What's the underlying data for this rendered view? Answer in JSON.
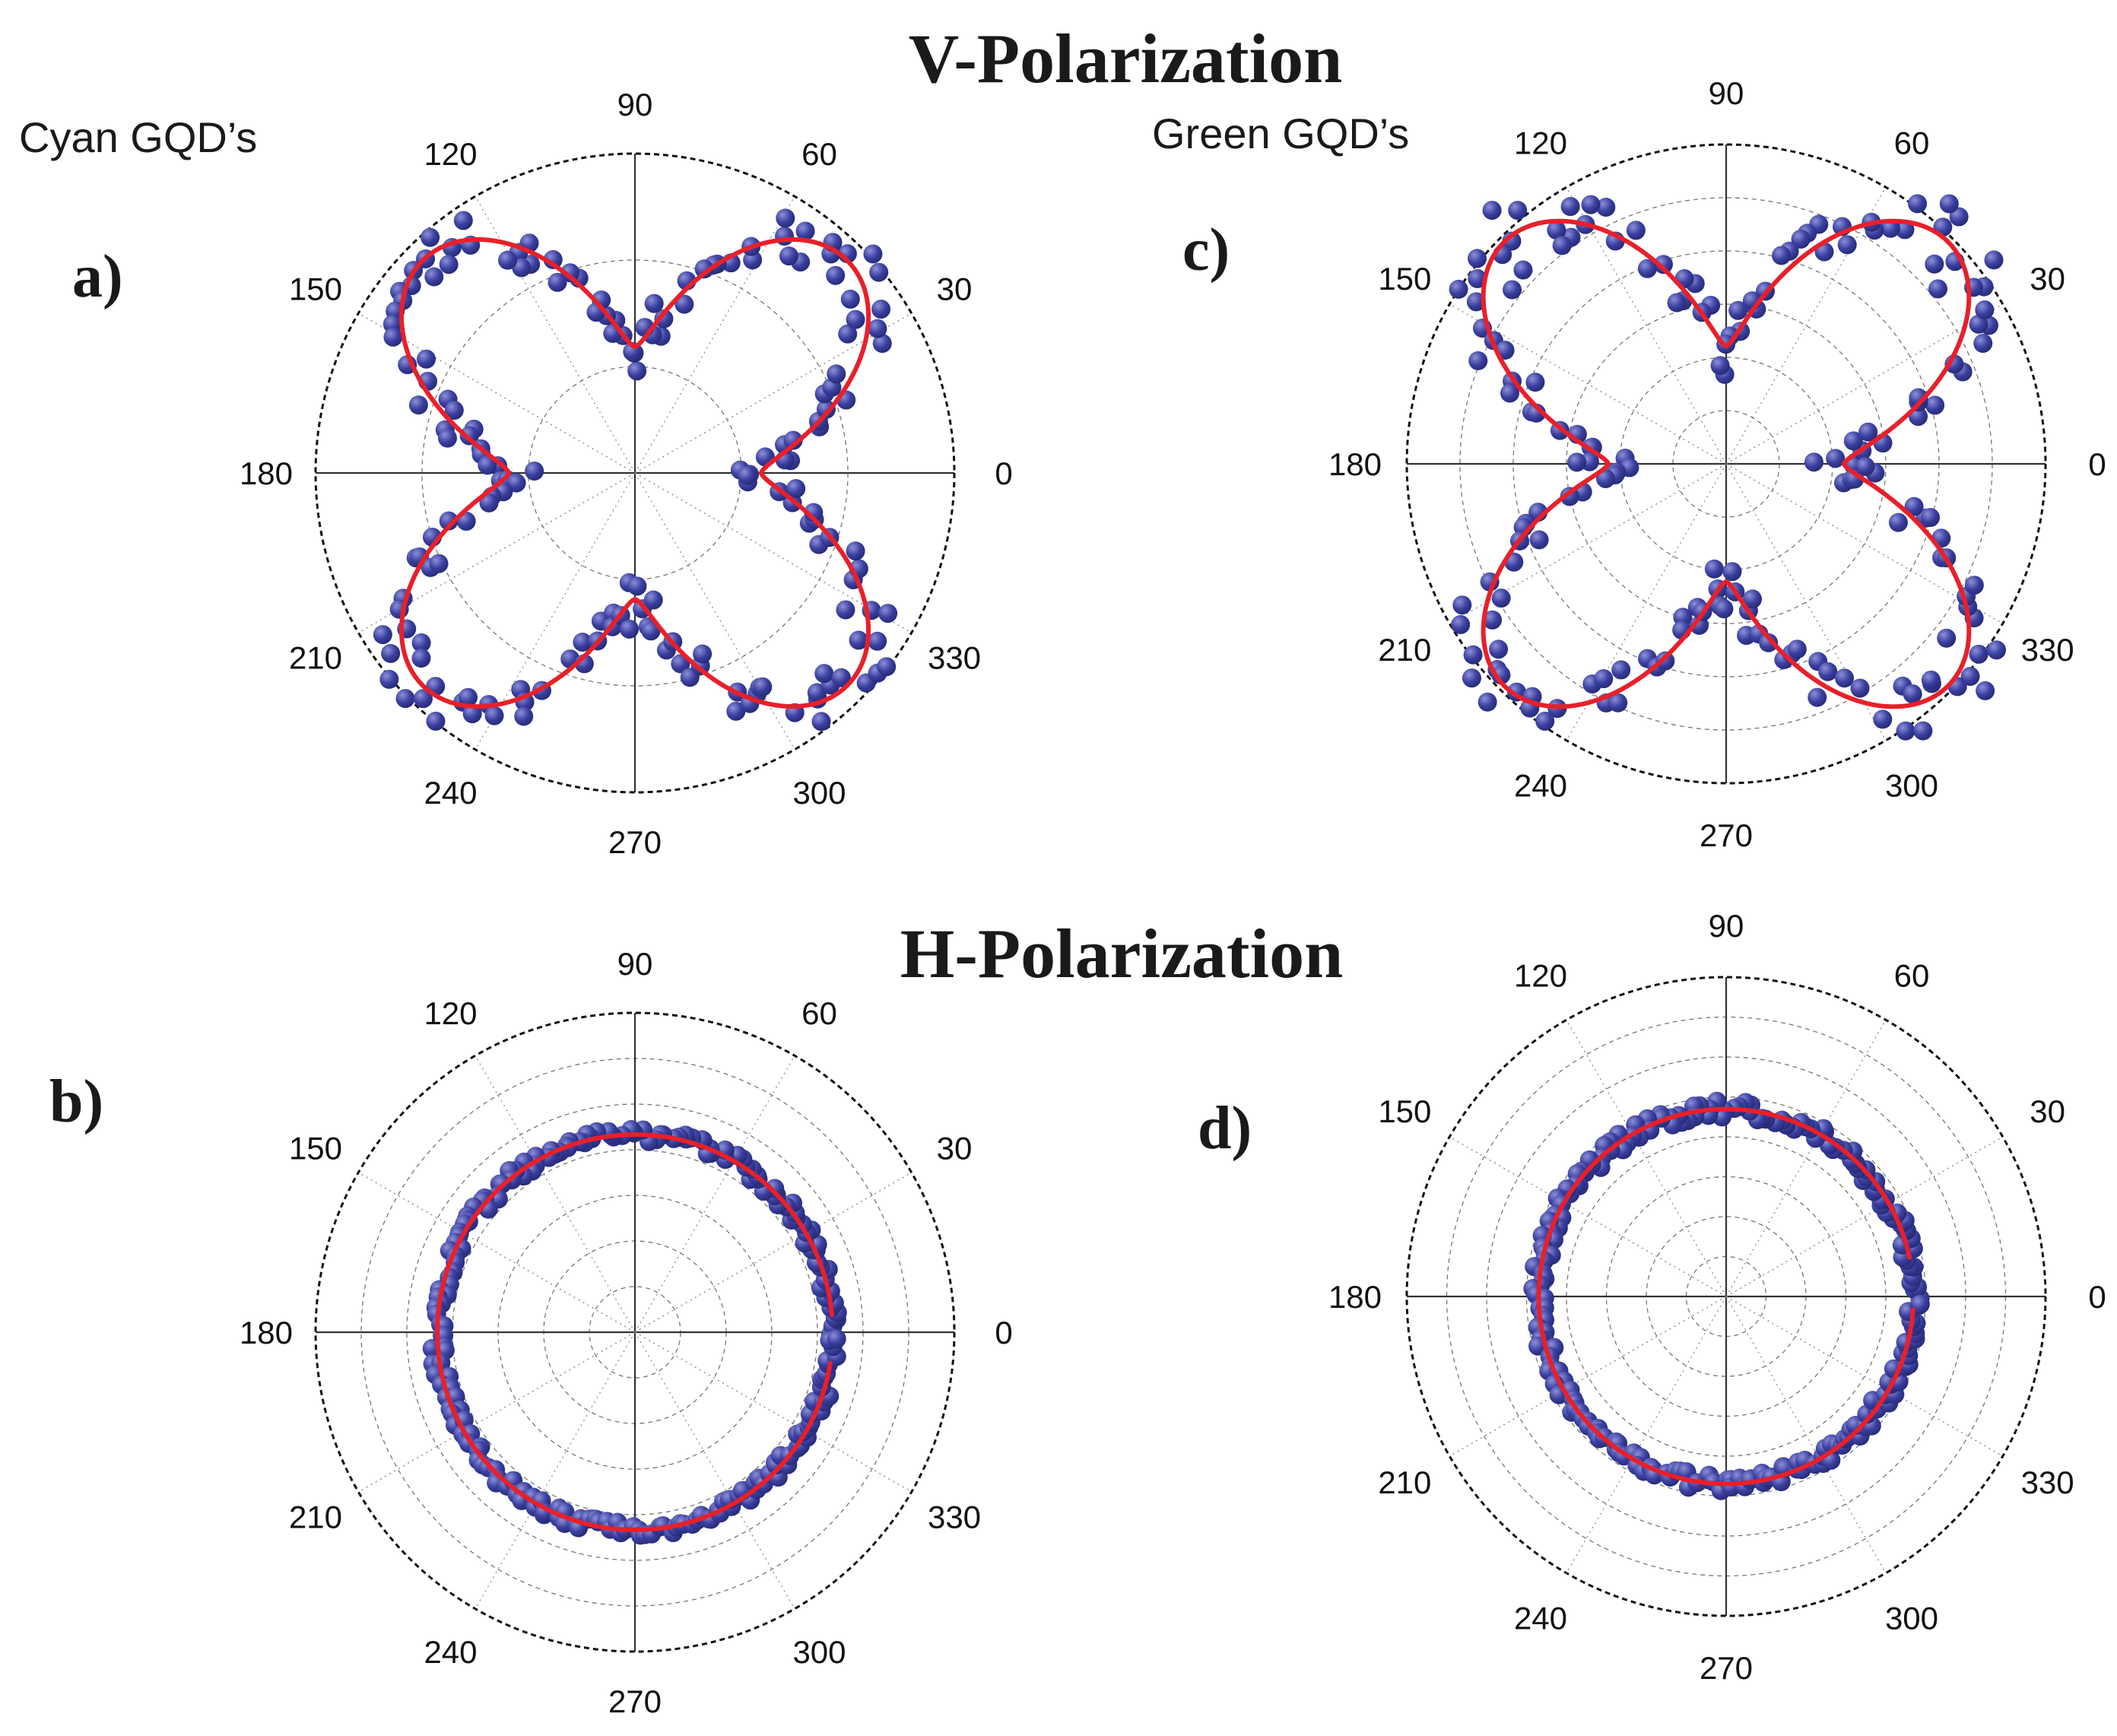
{
  "headings": {
    "v_polarization": "V-Polarization",
    "h_polarization": "H-Polarization"
  },
  "samples": {
    "cyan": "Cyan GQD’s",
    "green": "Green GQD’s"
  },
  "colors": {
    "data_points": "#3a3fa0",
    "data_highlight": "#8c90d8",
    "fit_curve": "#e8202a",
    "grid": "#8a8a8a"
  },
  "chart_data": [
    {
      "id": "a",
      "panel_label": "a)",
      "type": "polar-scatter",
      "series": [
        {
          "role": "data",
          "marker": "circle"
        },
        {
          "role": "fit",
          "marker": "line"
        }
      ],
      "angle_ticks": [
        "0",
        "30",
        "60",
        "90",
        "120",
        "150",
        "180",
        "210",
        "240",
        "270",
        "300",
        "330"
      ],
      "rings": 2,
      "fit_model": {
        "kind": "cos4",
        "base": 0.42,
        "amplitude": 0.58,
        "phase_deg": 45,
        "sharpness": 1.5
      },
      "max_radius": 1.0,
      "grid": true
    },
    {
      "id": "b",
      "panel_label": "b)",
      "type": "polar-scatter",
      "series": [
        {
          "role": "data",
          "marker": "circle"
        },
        {
          "role": "fit",
          "marker": "line"
        }
      ],
      "angle_ticks": [
        "0",
        "30",
        "60",
        "90",
        "120",
        "150",
        "180",
        "210",
        "240",
        "270",
        "300",
        "330"
      ],
      "rings": 6,
      "fit_model": {
        "kind": "circle",
        "radius": 0.97,
        "gap_start_deg": 351,
        "gap_end_deg": 5
      },
      "max_radius": 1.55,
      "grid": true
    },
    {
      "id": "c",
      "panel_label": "c)",
      "type": "polar-scatter",
      "series": [
        {
          "role": "data",
          "marker": "circle"
        },
        {
          "role": "fit",
          "marker": "line"
        }
      ],
      "angle_ticks": [
        "0",
        "30",
        "60",
        "90",
        "120",
        "150",
        "180",
        "210",
        "240",
        "270",
        "300",
        "330"
      ],
      "rings": 5,
      "fit_model": {
        "kind": "cos4",
        "base": 0.36,
        "amplitude": 0.6,
        "phase_deg": 45,
        "sharpness": 1.5
      },
      "max_radius": 1.0,
      "grid": true
    },
    {
      "id": "d",
      "panel_label": "d)",
      "type": "polar-scatter",
      "series": [
        {
          "role": "data",
          "marker": "circle"
        },
        {
          "role": "fit",
          "marker": "line"
        }
      ],
      "angle_ticks": [
        "0",
        "30",
        "60",
        "90",
        "120",
        "150",
        "180",
        "210",
        "240",
        "270",
        "300",
        "330"
      ],
      "rings": 7,
      "fit_model": {
        "kind": "circle",
        "radius": 0.93,
        "gap_start_deg": 356,
        "gap_end_deg": 12
      },
      "max_radius": 1.5,
      "grid": true
    }
  ]
}
